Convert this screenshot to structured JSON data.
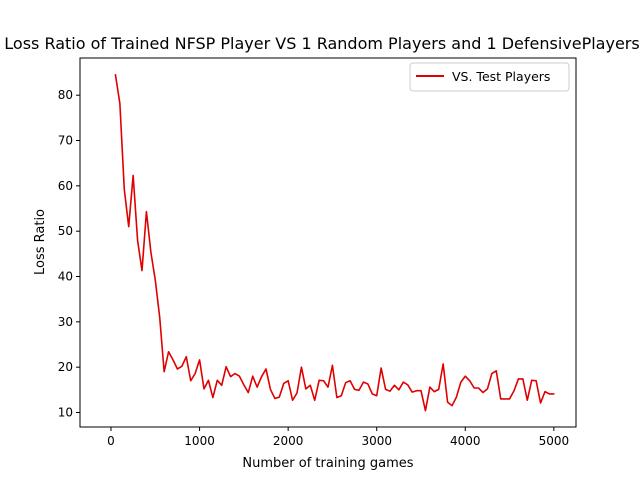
{
  "chart_data": {
    "type": "line",
    "title": "Loss Ratio of Trained NFSP Player VS 1 Random Players and 1 DefensivePlayers",
    "xlabel": "Number of training games",
    "ylabel": "Loss Ratio",
    "xlim": [
      -350,
      5250
    ],
    "ylim": [
      6.8,
      88.2
    ],
    "xticks": [
      0,
      1000,
      2000,
      3000,
      4000,
      5000
    ],
    "yticks": [
      10,
      20,
      30,
      40,
      50,
      60,
      70,
      80
    ],
    "grid": false,
    "legend_position": "top-right",
    "series": [
      {
        "name": "VS. Test Players",
        "color": "#e00000",
        "x": [
          50,
          100,
          150,
          200,
          250,
          300,
          350,
          400,
          450,
          500,
          550,
          600,
          650,
          700,
          750,
          800,
          850,
          900,
          950,
          1000,
          1050,
          1100,
          1150,
          1200,
          1250,
          1300,
          1350,
          1400,
          1450,
          1500,
          1550,
          1600,
          1650,
          1700,
          1750,
          1800,
          1850,
          1900,
          1950,
          2000,
          2050,
          2100,
          2150,
          2200,
          2250,
          2300,
          2350,
          2400,
          2450,
          2500,
          2550,
          2600,
          2650,
          2700,
          2750,
          2800,
          2850,
          2900,
          2950,
          3000,
          3050,
          3100,
          3150,
          3200,
          3250,
          3300,
          3350,
          3400,
          3450,
          3500,
          3550,
          3600,
          3650,
          3700,
          3750,
          3800,
          3850,
          3900,
          3950,
          4000,
          4050,
          4100,
          4150,
          4200,
          4250,
          4300,
          4350,
          4400,
          4450,
          4500,
          4550,
          4600,
          4650,
          4700,
          4750,
          4800,
          4850,
          4900,
          4950,
          5000
        ],
        "values": [
          84.5,
          78.2,
          59.2,
          51.0,
          62.3,
          48.0,
          41.3,
          54.3,
          45.4,
          39.2,
          31.0,
          19.0,
          23.4,
          21.6,
          19.6,
          20.2,
          22.3,
          17.0,
          18.6,
          21.6,
          15.2,
          17.1,
          13.3,
          17.1,
          16.0,
          20.1,
          17.9,
          18.6,
          18.0,
          16.1,
          14.4,
          18.0,
          15.6,
          17.9,
          19.6,
          15.1,
          13.1,
          13.4,
          16.4,
          17.0,
          12.7,
          14.3,
          20.0,
          15.2,
          16.0,
          12.7,
          17.1,
          17.0,
          15.6,
          20.4,
          13.3,
          13.7,
          16.6,
          17.0,
          15.1,
          14.9,
          16.7,
          16.3,
          14.1,
          13.7,
          19.8,
          15.1,
          14.7,
          16.0,
          15.0,
          16.7,
          16.1,
          14.5,
          14.8,
          14.8,
          10.4,
          15.6,
          14.6,
          15.1,
          20.7,
          12.3,
          11.5,
          13.4,
          16.7,
          18.0,
          17.0,
          15.4,
          15.4,
          14.4,
          15.2,
          18.6,
          19.2,
          13.0,
          13.0,
          13.0,
          14.8,
          17.4,
          17.4,
          12.7,
          17.1,
          17.0,
          12.1,
          14.6,
          14.1,
          14.1
        ]
      }
    ]
  }
}
